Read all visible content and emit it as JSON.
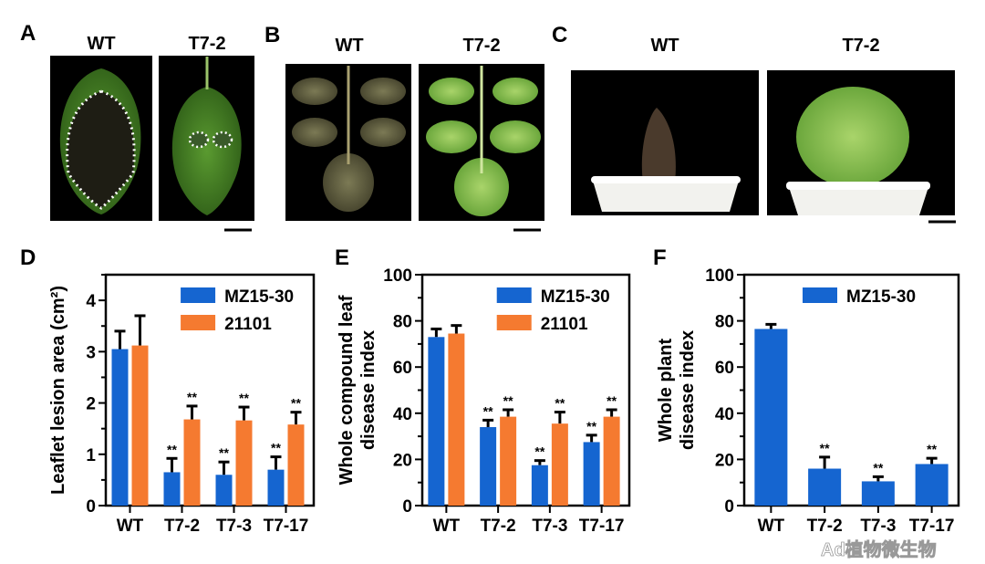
{
  "panels": {
    "A": {
      "label": "A",
      "titles": [
        "WT",
        "T7-2"
      ]
    },
    "B": {
      "label": "B",
      "titles": [
        "WT",
        "T7-2"
      ]
    },
    "C": {
      "label": "C",
      "titles": [
        "WT",
        "T7-2"
      ]
    },
    "D": {
      "label": "D"
    },
    "E": {
      "label": "E"
    },
    "F": {
      "label": "F"
    }
  },
  "watermark": "Ad植物微生物",
  "colors": {
    "MZ15-30": "#1565d0",
    "21101": "#f57a30"
  },
  "chart_data": [
    {
      "panel": "D",
      "type": "bar",
      "ylabel": "Leaflet lesion area (cm²)",
      "categories": [
        "WT",
        "T7-2",
        "T7-3",
        "T7-17"
      ],
      "ylim": [
        0,
        4.5
      ],
      "yticks": [
        0,
        1,
        2,
        3,
        4
      ],
      "legend": "top-right",
      "series": [
        {
          "name": "MZ15-30",
          "values": [
            3.05,
            0.65,
            0.6,
            0.7
          ],
          "errors": [
            0.35,
            0.27,
            0.25,
            0.25
          ],
          "sig": [
            "",
            "**",
            "**",
            "**"
          ]
        },
        {
          "name": "21101",
          "values": [
            3.12,
            1.68,
            1.66,
            1.58
          ],
          "errors": [
            0.58,
            0.26,
            0.26,
            0.24
          ],
          "sig": [
            "",
            "**",
            "**",
            "**"
          ]
        }
      ]
    },
    {
      "panel": "E",
      "type": "bar",
      "ylabel": [
        "Whole compound leaf",
        "disease index"
      ],
      "categories": [
        "WT",
        "T7-2",
        "T7-3",
        "T7-17"
      ],
      "ylim": [
        0,
        100
      ],
      "yticks": [
        0,
        20,
        40,
        60,
        80,
        100
      ],
      "legend": "top-right",
      "series": [
        {
          "name": "MZ15-30",
          "values": [
            73,
            34,
            17.5,
            27.5
          ],
          "errors": [
            3.5,
            3,
            2,
            3
          ],
          "sig": [
            "",
            "**",
            "**",
            "**"
          ]
        },
        {
          "name": "21101",
          "values": [
            74.5,
            38.5,
            35.5,
            38.5
          ],
          "errors": [
            3.5,
            3,
            5,
            3
          ],
          "sig": [
            "",
            "**",
            "**",
            "**"
          ]
        }
      ]
    },
    {
      "panel": "F",
      "type": "bar",
      "ylabel": [
        "Whole plant",
        "disease index"
      ],
      "categories": [
        "WT",
        "T7-2",
        "T7-3",
        "T7-17"
      ],
      "ylim": [
        0,
        100
      ],
      "yticks": [
        0,
        20,
        40,
        60,
        80,
        100
      ],
      "legend": "top",
      "series": [
        {
          "name": "MZ15-30",
          "values": [
            76.5,
            16,
            10.5,
            18
          ],
          "errors": [
            2,
            5,
            2,
            2.5
          ],
          "sig": [
            "",
            "**",
            "**",
            "**"
          ]
        }
      ]
    }
  ]
}
